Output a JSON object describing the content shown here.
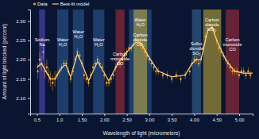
{
  "chart_data": {
    "type": "scatter",
    "x_label": "Wavelength of light (micrometers)",
    "y_label": "Amount of light blocked (percent)",
    "xlim": [
      0.35,
      5.3
    ],
    "ylim": [
      2.06,
      2.33
    ],
    "xticks": [
      0.5,
      {
        "value": 1.0,
        "label": "1.0"
      },
      {
        "value": 1.5,
        "label": "1.50"
      },
      {
        "value": 2.0,
        "label": "2.00"
      },
      {
        "value": 2.5,
        "label": "2.50"
      },
      {
        "value": 3.0,
        "label": "3.00"
      },
      {
        "value": 3.5,
        "label": "3.50"
      },
      {
        "value": 4.0,
        "label": "4.00"
      },
      {
        "value": 4.5,
        "label": "4.50"
      },
      {
        "value": 5.0,
        "label": "5.00"
      }
    ],
    "yticks": [
      {
        "value": 2.1,
        "label": "2.10"
      },
      {
        "value": 2.15,
        "label": "2.15"
      },
      {
        "value": 2.2,
        "label": "2.20"
      },
      {
        "value": 2.25,
        "label": "2.25"
      },
      {
        "value": 2.3,
        "label": "2.30"
      }
    ],
    "grid": false,
    "legend": "top-left",
    "series": [
      {
        "name": "Data",
        "type": "scatter",
        "marker": "circle",
        "color": "#f6a623",
        "x": [
          0.52,
          0.56,
          0.6,
          0.64,
          0.68,
          0.72,
          0.76,
          0.8,
          0.85,
          0.9,
          0.95,
          1.0,
          1.05,
          1.1,
          1.15,
          1.2,
          1.25,
          1.3,
          1.35,
          1.4,
          1.45,
          1.5,
          1.55,
          1.6,
          1.65,
          1.7,
          1.75,
          1.8,
          1.85,
          1.9,
          1.95,
          2.0,
          2.05,
          2.1,
          2.15,
          2.2,
          2.25,
          2.3,
          2.35,
          2.4,
          2.45,
          2.5,
          2.55,
          2.6,
          2.65,
          2.7,
          2.75,
          2.8,
          2.85,
          2.9,
          2.95,
          3.0,
          3.05,
          3.1,
          3.15,
          3.2,
          3.3,
          3.4,
          3.5,
          3.6,
          3.7,
          3.8,
          3.9,
          3.95,
          4.0,
          4.05,
          4.1,
          4.15,
          4.2,
          4.25,
          4.3,
          4.35,
          4.4,
          4.45,
          4.5,
          4.55,
          4.6,
          4.65,
          4.7,
          4.75,
          4.8,
          4.85,
          4.9,
          4.95,
          5.0,
          5.05,
          5.1,
          5.15,
          5.2,
          5.25
        ],
        "values": [
          2.17,
          2.2,
          2.19,
          2.22,
          2.17,
          2.18,
          2.16,
          2.15,
          2.14,
          2.15,
          2.16,
          2.17,
          2.18,
          2.19,
          2.19,
          2.17,
          2.15,
          2.17,
          2.2,
          2.22,
          2.21,
          2.19,
          2.16,
          2.15,
          2.14,
          2.16,
          2.18,
          2.19,
          2.2,
          2.19,
          2.18,
          2.16,
          2.14,
          2.14,
          2.15,
          2.16,
          2.18,
          2.19,
          2.19,
          2.2,
          2.21,
          2.22,
          2.23,
          2.23,
          2.24,
          2.25,
          2.25,
          2.24,
          2.23,
          2.22,
          2.21,
          2.2,
          2.19,
          2.18,
          2.17,
          2.17,
          2.16,
          2.16,
          2.15,
          2.16,
          2.15,
          2.16,
          2.17,
          2.19,
          2.2,
          2.2,
          2.19,
          2.2,
          2.23,
          2.26,
          2.28,
          2.29,
          2.28,
          2.27,
          2.25,
          2.23,
          2.22,
          2.21,
          2.2,
          2.19,
          2.18,
          2.17,
          2.17,
          2.17,
          2.16,
          2.17,
          2.17,
          2.16,
          2.17,
          2.16
        ],
        "errors": [
          0.02,
          0.02,
          0.02,
          0.02,
          0.02,
          0.02,
          0.02,
          0.02,
          0.02,
          0.02,
          0.01,
          0.01,
          0.01,
          0.01,
          0.01,
          0.01,
          0.01,
          0.01,
          0.01,
          0.01,
          0.01,
          0.01,
          0.01,
          0.01,
          0.01,
          0.01,
          0.01,
          0.01,
          0.01,
          0.01,
          0.01,
          0.01,
          0.01,
          0.01,
          0.01,
          0.01,
          0.01,
          0.01,
          0.01,
          0.01,
          0.01,
          0.01,
          0.01,
          0.01,
          0.01,
          0.01,
          0.01,
          0.01,
          0.01,
          0.01,
          0.01,
          0.01,
          0.01,
          0.01,
          0.01,
          0.01,
          0.01,
          0.01,
          0.01,
          0.01,
          0.01,
          0.01,
          0.01,
          0.01,
          0.01,
          0.01,
          0.01,
          0.01,
          0.01,
          0.01,
          0.01,
          0.01,
          0.01,
          0.01,
          0.01,
          0.01,
          0.01,
          0.01,
          0.01,
          0.01,
          0.01,
          0.01,
          0.01,
          0.01,
          0.01,
          0.01,
          0.01,
          0.01,
          0.01,
          0.01
        ]
      },
      {
        "name": "Best-fit model",
        "type": "line",
        "line_style": "solid",
        "color": "#ffd27a",
        "x": [
          0.5,
          0.6,
          0.7,
          0.8,
          0.9,
          1.0,
          1.1,
          1.15,
          1.25,
          1.4,
          1.5,
          1.65,
          1.85,
          2.0,
          2.1,
          2.3,
          2.5,
          2.7,
          2.8,
          3.0,
          3.2,
          3.5,
          3.8,
          3.95,
          4.05,
          4.15,
          4.3,
          4.4,
          4.5,
          4.7,
          4.9,
          5.1,
          5.3
        ],
        "values": [
          2.18,
          2.19,
          2.17,
          2.15,
          2.15,
          2.17,
          2.185,
          2.185,
          2.155,
          2.215,
          2.19,
          2.145,
          2.195,
          2.165,
          2.145,
          2.19,
          2.22,
          2.245,
          2.245,
          2.205,
          2.17,
          2.155,
          2.16,
          2.19,
          2.2,
          2.2,
          2.275,
          2.285,
          2.25,
          2.2,
          2.17,
          2.165,
          2.165
        ]
      }
    ],
    "annotations": [
      {
        "x0": 0.55,
        "x1": 0.68,
        "color": "#5a4fcf",
        "lines": [
          "Sodium",
          "Na"
        ]
      },
      {
        "x0": 0.95,
        "x1": 1.2,
        "color": "#2e5f9e",
        "lines": [
          "Water",
          "H₂O"
        ]
      },
      {
        "x0": 1.3,
        "x1": 1.55,
        "color": "#2e5f9e",
        "lines": [
          "Water",
          "H₂O"
        ]
      },
      {
        "x0": 1.75,
        "x1": 2.0,
        "color": "#2e5f9e",
        "lines": [
          "Water",
          "H₂O"
        ]
      },
      {
        "x0": 2.25,
        "x1": 2.45,
        "color": "#b0303a",
        "lines": [
          "Carbon",
          "monoxide",
          "CO"
        ]
      },
      {
        "x0": 2.55,
        "x1": 3.05,
        "color": "#2e5f9e",
        "lines": [
          "Water",
          "H₂O"
        ]
      },
      {
        "x0": 2.65,
        "x1": 2.95,
        "color": "#c9b23a",
        "lines": [
          "Carbon",
          "dioxide",
          "CO₂"
        ]
      },
      {
        "x0": 3.95,
        "x1": 4.15,
        "color": "#3a6fa0",
        "lines": [
          "Sulfur",
          "dioxide",
          "SO₂"
        ]
      },
      {
        "x0": 4.2,
        "x1": 4.6,
        "color": "#c9b23a",
        "lines": [
          "Carbon",
          "dioxide",
          "CO₂"
        ]
      },
      {
        "x0": 4.7,
        "x1": 5.0,
        "color": "#b0303a",
        "lines": [
          "Carbon",
          "monoxide",
          "CO"
        ]
      }
    ]
  }
}
